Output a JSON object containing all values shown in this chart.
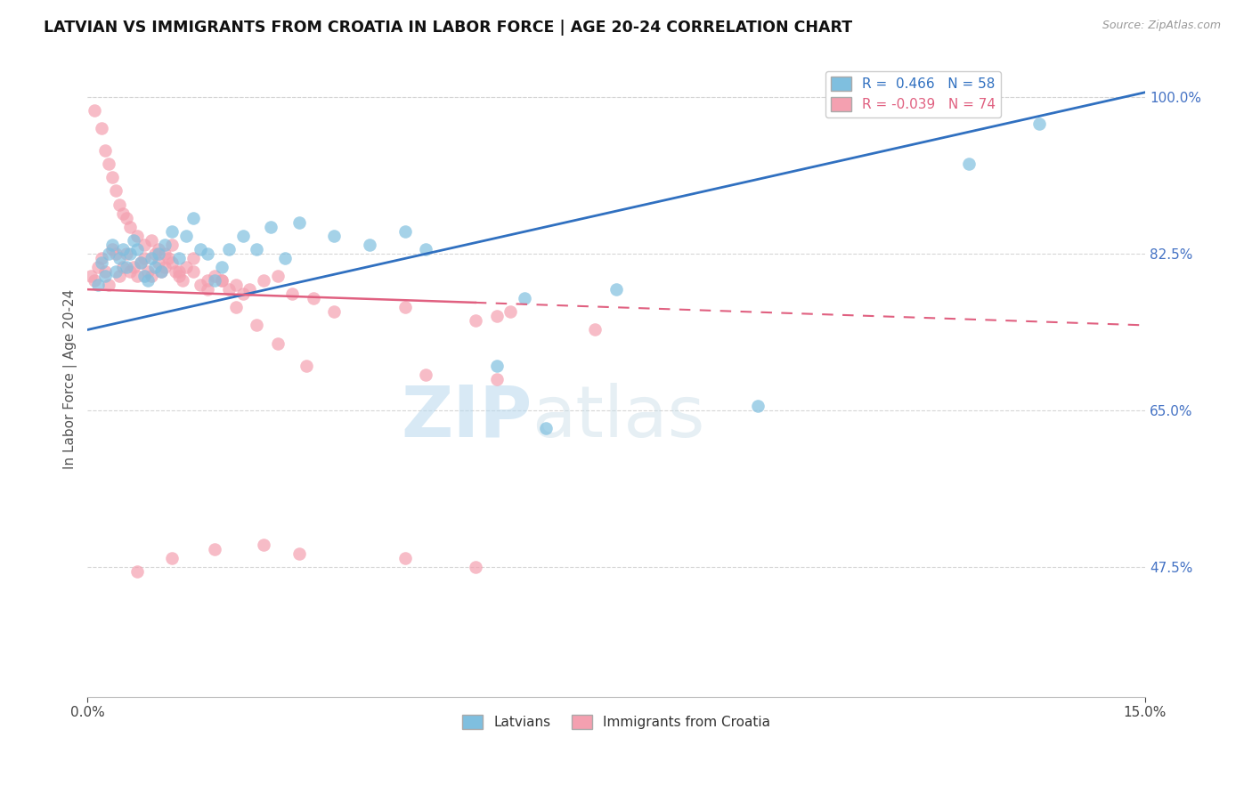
{
  "title": "LATVIAN VS IMMIGRANTS FROM CROATIA IN LABOR FORCE | AGE 20-24 CORRELATION CHART",
  "source_text": "Source: ZipAtlas.com",
  "ylabel": "In Labor Force | Age 20-24",
  "xlim": [
    0.0,
    15.0
  ],
  "ylim": [
    33.0,
    104.0
  ],
  "x_ticks": [
    0.0,
    15.0
  ],
  "x_tick_labels": [
    "0.0%",
    "15.0%"
  ],
  "y_ticks": [
    47.5,
    65.0,
    82.5,
    100.0
  ],
  "y_tick_labels": [
    "47.5%",
    "65.0%",
    "82.5%",
    "100.0%"
  ],
  "blue_R": 0.466,
  "blue_N": 58,
  "pink_R": -0.039,
  "pink_N": 74,
  "blue_scatter_color": "#7fbfdf",
  "pink_scatter_color": "#f4a0b0",
  "blue_line_color": "#3070c0",
  "pink_line_color": "#e06080",
  "background_color": "#ffffff",
  "blue_line_y0": 74.0,
  "blue_line_y1": 100.5,
  "pink_line_y0": 78.5,
  "pink_line_y1": 74.5,
  "pink_solid_end_x": 5.5,
  "blue_scatter_x": [
    0.15,
    0.2,
    0.25,
    0.3,
    0.35,
    0.4,
    0.45,
    0.5,
    0.55,
    0.6,
    0.65,
    0.7,
    0.75,
    0.8,
    0.85,
    0.9,
    0.95,
    1.0,
    1.05,
    1.1,
    1.2,
    1.3,
    1.4,
    1.5,
    1.6,
    1.7,
    1.8,
    1.9,
    2.0,
    2.2,
    2.4,
    2.6,
    2.8,
    3.0,
    3.5,
    4.0,
    4.5,
    4.8,
    5.8,
    6.2,
    6.5,
    7.5,
    9.5,
    12.5,
    13.5
  ],
  "blue_scatter_y": [
    79.0,
    81.5,
    80.0,
    82.5,
    83.5,
    80.5,
    82.0,
    83.0,
    81.0,
    82.5,
    84.0,
    83.0,
    81.5,
    80.0,
    79.5,
    82.0,
    81.0,
    82.5,
    80.5,
    83.5,
    85.0,
    82.0,
    84.5,
    86.5,
    83.0,
    82.5,
    79.5,
    81.0,
    83.0,
    84.5,
    83.0,
    85.5,
    82.0,
    86.0,
    84.5,
    83.5,
    85.0,
    83.0,
    70.0,
    77.5,
    63.0,
    78.5,
    65.5,
    92.5,
    97.0
  ],
  "pink_scatter_x": [
    0.05,
    0.1,
    0.15,
    0.2,
    0.25,
    0.3,
    0.35,
    0.4,
    0.45,
    0.5,
    0.55,
    0.6,
    0.65,
    0.7,
    0.75,
    0.8,
    0.85,
    0.9,
    0.95,
    1.0,
    1.05,
    1.1,
    1.15,
    1.2,
    1.25,
    1.3,
    1.35,
    1.4,
    1.5,
    1.6,
    1.7,
    1.8,
    1.9,
    2.0,
    2.1,
    2.2,
    2.3,
    2.5,
    2.7,
    2.9,
    3.2,
    3.5,
    4.5,
    5.5,
    5.8,
    6.0
  ],
  "pink_scatter_y": [
    80.0,
    79.5,
    81.0,
    82.0,
    80.5,
    79.0,
    83.0,
    82.5,
    80.0,
    81.0,
    82.5,
    80.5,
    81.0,
    80.0,
    81.5,
    82.0,
    80.5,
    80.0,
    82.5,
    81.5,
    80.5,
    81.0,
    82.0,
    81.5,
    80.5,
    80.0,
    79.5,
    81.0,
    80.5,
    79.0,
    79.5,
    80.0,
    79.5,
    78.5,
    79.0,
    78.0,
    78.5,
    79.5,
    80.0,
    78.0,
    77.5,
    76.0,
    76.5,
    75.0,
    75.5,
    76.0
  ],
  "pink_extra_x": [
    0.1,
    0.2,
    0.25,
    0.3,
    0.35,
    0.4,
    0.45,
    0.5,
    0.55,
    0.6,
    0.7,
    0.8,
    0.9,
    1.0,
    1.1,
    1.2,
    1.3,
    1.5,
    1.7,
    1.9,
    2.1,
    2.4,
    2.7,
    3.1,
    4.8,
    5.8,
    7.2
  ],
  "pink_extra_y": [
    98.5,
    96.5,
    94.0,
    92.5,
    91.0,
    89.5,
    88.0,
    87.0,
    86.5,
    85.5,
    84.5,
    83.5,
    84.0,
    83.0,
    82.5,
    83.5,
    80.5,
    82.0,
    78.5,
    79.5,
    76.5,
    74.5,
    72.5,
    70.0,
    69.0,
    68.5,
    74.0
  ],
  "pink_low_x": [
    0.7,
    1.2,
    1.8,
    2.5,
    3.0,
    4.5,
    5.5
  ],
  "pink_low_y": [
    47.0,
    48.5,
    49.5,
    50.0,
    49.0,
    48.5,
    47.5
  ]
}
